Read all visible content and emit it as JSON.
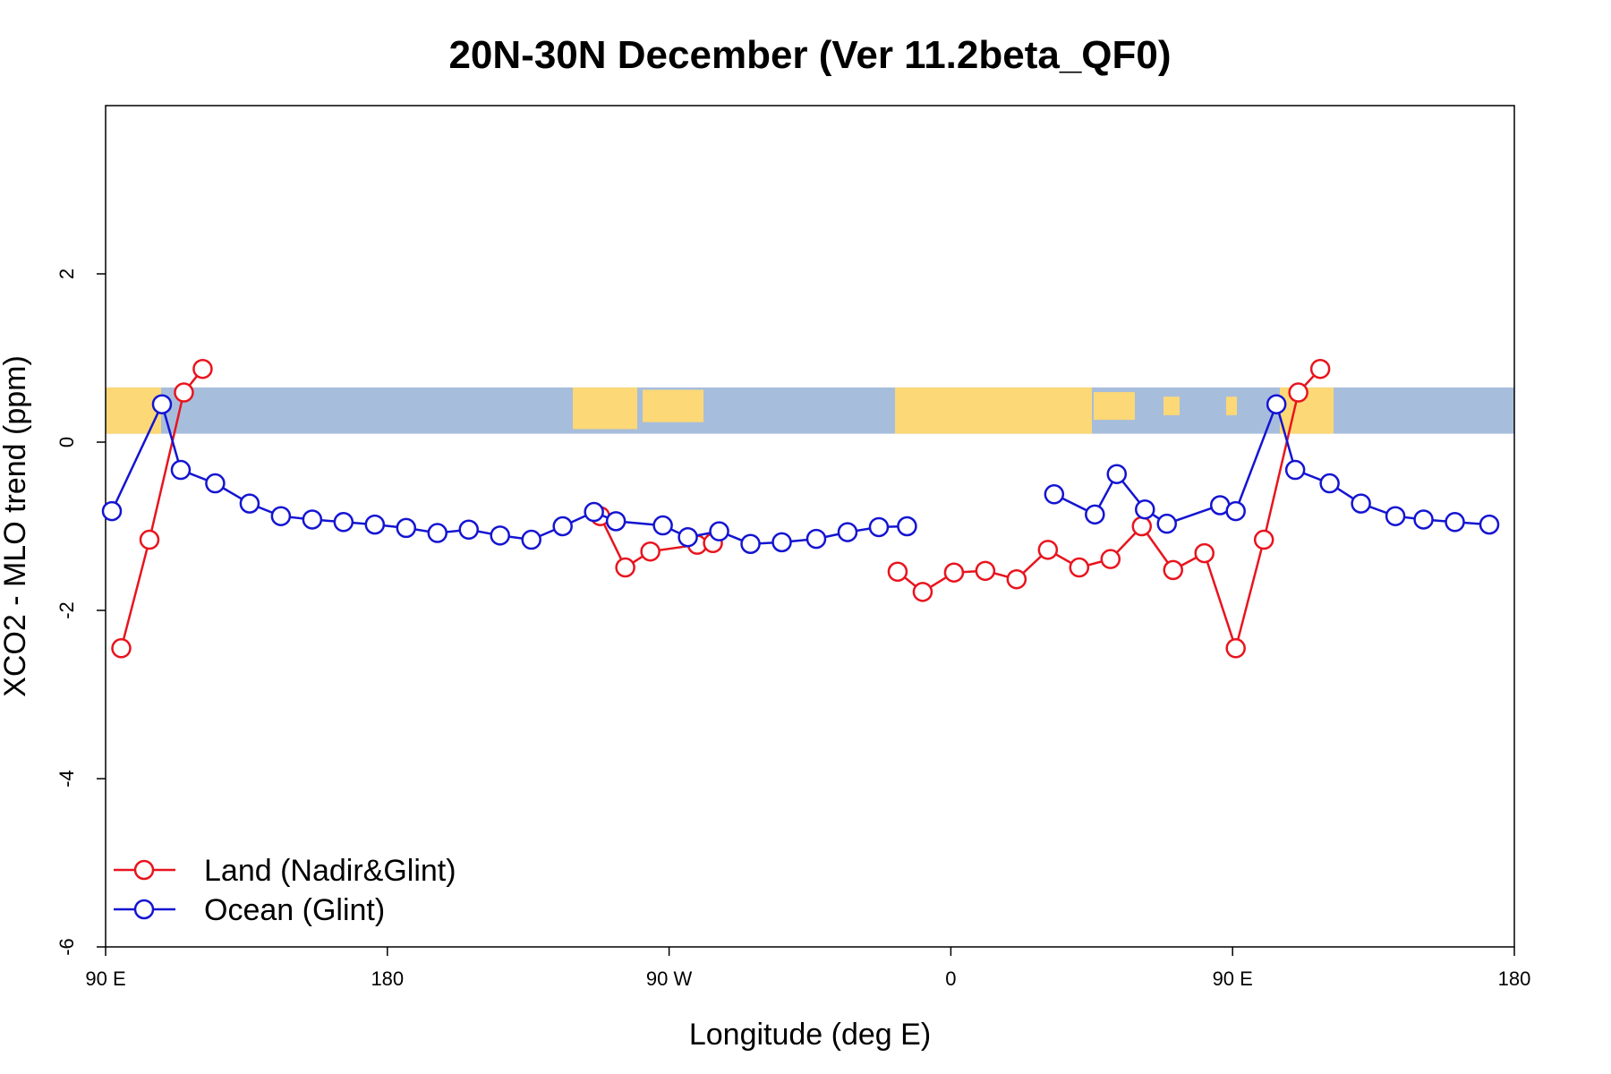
{
  "chart_data": {
    "type": "line",
    "title": "20N-30N December (Ver 11.2beta_QF0)",
    "xlabel": "Longitude (deg E)",
    "ylabel": "XCO2 - MLO trend (ppm)",
    "xlim": [
      90,
      540
    ],
    "ylim": [
      -6,
      4
    ],
    "x_ticks": [
      {
        "value": 90,
        "label": "90 E"
      },
      {
        "value": 180,
        "label": "180"
      },
      {
        "value": 270,
        "label": "90 W"
      },
      {
        "value": 360,
        "label": "0"
      },
      {
        "value": 450,
        "label": "90 E"
      },
      {
        "value": 540,
        "label": "180"
      }
    ],
    "y_ticks": [
      {
        "value": 2,
        "label": "2"
      },
      {
        "value": 0,
        "label": "0"
      },
      {
        "value": -2,
        "label": "-2"
      },
      {
        "value": -4,
        "label": "-4"
      },
      {
        "value": -6,
        "label": "-6"
      }
    ],
    "map_strip": {
      "y_min": 0.1,
      "y_max": 0.65,
      "ocean_color": "#a7bddc",
      "land_color": "#fcd876"
    },
    "legend": {
      "position": "bottom-left"
    },
    "series": [
      {
        "name": "Land (Nadir&Glint)",
        "color": "#e8141e",
        "segments": [
          [
            [
              95,
              -2.45
            ],
            [
              104,
              -1.16
            ],
            [
              115,
              0.59
            ],
            [
              121,
              0.87
            ]
          ],
          [
            [
              248,
              -0.88
            ],
            [
              256,
              -1.49
            ],
            [
              264,
              -1.3
            ],
            [
              279,
              -1.22
            ],
            [
              284,
              -1.2
            ]
          ],
          [
            [
              343,
              -1.54
            ],
            [
              351,
              -1.78
            ],
            [
              361,
              -1.55
            ],
            [
              371,
              -1.53
            ],
            [
              381,
              -1.63
            ],
            [
              391,
              -1.28
            ],
            [
              401,
              -1.49
            ],
            [
              411,
              -1.39
            ],
            [
              421,
              -1.0
            ],
            [
              431,
              -1.52
            ],
            [
              441,
              -1.32
            ],
            [
              451,
              -2.45
            ],
            [
              460,
              -1.16
            ],
            [
              471,
              0.59
            ],
            [
              478,
              0.87
            ]
          ]
        ]
      },
      {
        "name": "Ocean (Glint)",
        "color": "#1414d2",
        "segments": [
          [
            [
              92,
              -0.82
            ],
            [
              108,
              0.45
            ],
            [
              114,
              -0.33
            ],
            [
              125,
              -0.49
            ],
            [
              136,
              -0.73
            ],
            [
              146,
              -0.88
            ],
            [
              156,
              -0.92
            ],
            [
              166,
              -0.95
            ],
            [
              176,
              -0.98
            ],
            [
              186,
              -1.02
            ],
            [
              196,
              -1.08
            ],
            [
              206,
              -1.04
            ],
            [
              216,
              -1.11
            ],
            [
              226,
              -1.16
            ],
            [
              236,
              -1.0
            ],
            [
              246,
              -0.83
            ],
            [
              253,
              -0.94
            ],
            [
              268,
              -0.99
            ],
            [
              276,
              -1.13
            ],
            [
              286,
              -1.06
            ],
            [
              296,
              -1.21
            ],
            [
              306,
              -1.19
            ],
            [
              317,
              -1.15
            ],
            [
              327,
              -1.07
            ],
            [
              337,
              -1.01
            ],
            [
              346,
              -1.0
            ]
          ],
          [
            [
              393,
              -0.62
            ],
            [
              406,
              -0.86
            ],
            [
              413,
              -0.38
            ],
            [
              422,
              -0.8
            ],
            [
              429,
              -0.97
            ],
            [
              446,
              -0.75
            ],
            [
              451,
              -0.82
            ],
            [
              464,
              0.45
            ],
            [
              470,
              -0.33
            ],
            [
              481,
              -0.49
            ],
            [
              491,
              -0.73
            ],
            [
              502,
              -0.88
            ],
            [
              511,
              -0.92
            ],
            [
              521,
              -0.95
            ],
            [
              532,
              -0.98
            ]
          ]
        ]
      }
    ]
  }
}
